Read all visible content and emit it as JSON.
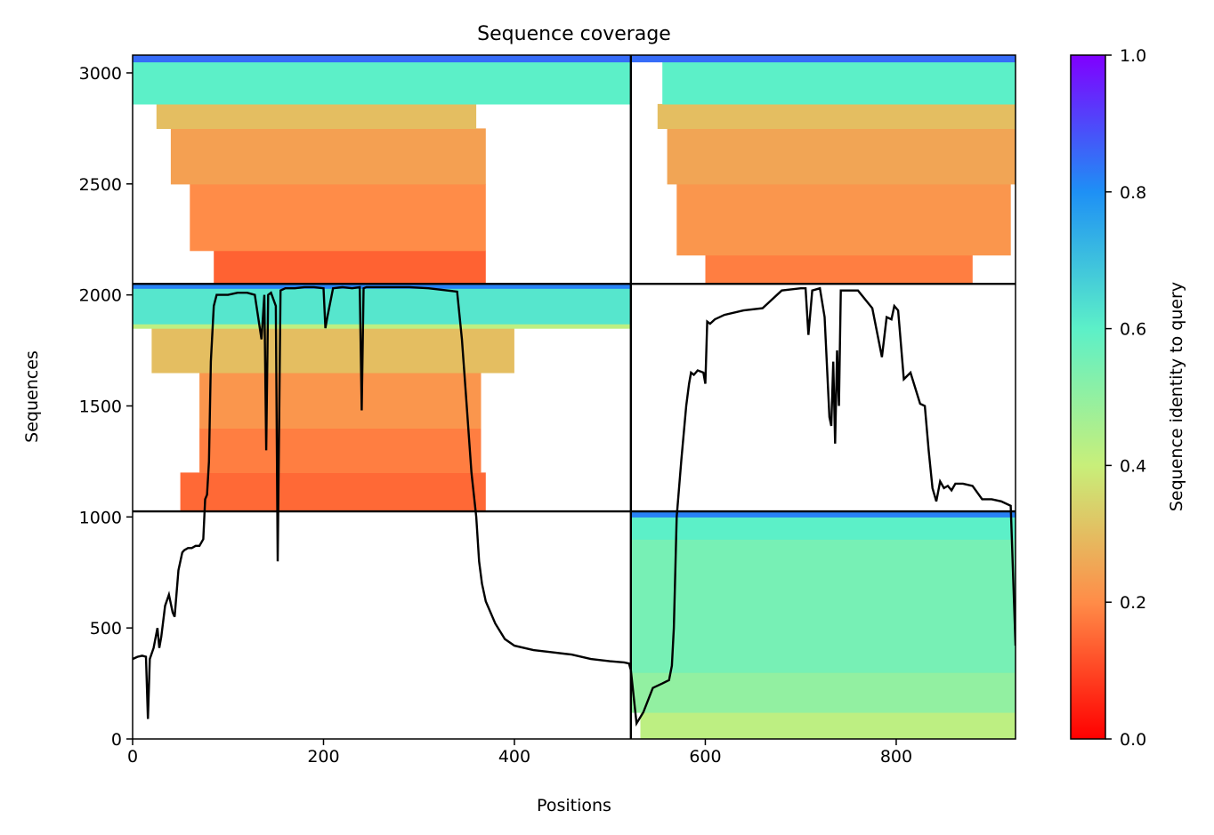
{
  "chart_data": {
    "type": "heatmap",
    "title": "Sequence coverage",
    "xlabel": "Positions",
    "ylabel": "Sequences",
    "xlim": [
      0,
      925
    ],
    "ylim": [
      0,
      3080
    ],
    "x_ticks": [
      0,
      200,
      400,
      600,
      800
    ],
    "y_ticks": [
      0,
      500,
      1000,
      1500,
      2000,
      2500,
      3000
    ],
    "grid": false,
    "colorbar": {
      "label": "Sequence identity to query",
      "colormap": "rainbow",
      "range": [
        0,
        1
      ],
      "ticks": [
        "0.0",
        "0.2",
        "0.4",
        "0.6",
        "0.8",
        "1.0"
      ],
      "colors": [
        "#ff0000",
        "#ff8c48",
        "#c8ef7a",
        "#5cf0c8",
        "#1e90f5",
        "#8000ff"
      ]
    },
    "boundaries": {
      "x": [
        522
      ],
      "y": [
        1025,
        2050
      ]
    },
    "blocks": [
      {
        "name": "block-lower-left",
        "x": [
          0,
          522
        ],
        "y": [
          0,
          1025
        ],
        "filled": false
      },
      {
        "name": "block-lower-right",
        "x": [
          522,
          925
        ],
        "y": [
          0,
          1025
        ],
        "filled": true,
        "bands": [
          {
            "y": [
              0,
              120
            ],
            "x": [
              532,
              925
            ],
            "identity": 0.42
          },
          {
            "y": [
              120,
              300
            ],
            "x": [
              522,
              925
            ],
            "identity": 0.5
          },
          {
            "y": [
              300,
              900
            ],
            "x": [
              522,
              925
            ],
            "identity": 0.55
          },
          {
            "y": [
              900,
              1000
            ],
            "x": [
              522,
              925
            ],
            "identity": 0.6
          },
          {
            "y": [
              1000,
              1025
            ],
            "x": [
              522,
              925
            ],
            "identity": 0.82
          }
        ]
      },
      {
        "name": "block-middle-left",
        "x": [
          0,
          522
        ],
        "y": [
          1025,
          2050
        ],
        "filled": true,
        "bands": [
          {
            "y": [
              1025,
              1200
            ],
            "x": [
              50,
              370
            ],
            "identity": 0.15
          },
          {
            "y": [
              1200,
              1400
            ],
            "x": [
              70,
              365
            ],
            "identity": 0.18
          },
          {
            "y": [
              1400,
              1650
            ],
            "x": [
              70,
              365
            ],
            "identity": 0.22
          },
          {
            "y": [
              1650,
              1850
            ],
            "x": [
              20,
              400
            ],
            "identity": 0.3
          },
          {
            "y": [
              1850,
              1870
            ],
            "x": [
              0,
              522
            ],
            "identity": 0.42
          },
          {
            "y": [
              1870,
              2030
            ],
            "x": [
              0,
              522
            ],
            "identity": 0.62
          },
          {
            "y": [
              2030,
              2050
            ],
            "x": [
              0,
              522
            ],
            "identity": 0.82
          }
        ]
      },
      {
        "name": "block-middle-right",
        "x": [
          522,
          925
        ],
        "y": [
          1025,
          2050
        ],
        "filled": false
      },
      {
        "name": "block-upper-left",
        "x": [
          0,
          522
        ],
        "y": [
          2050,
          3080
        ],
        "filled": true,
        "bands": [
          {
            "y": [
              2050,
              2200
            ],
            "x": [
              85,
              370
            ],
            "identity": 0.14
          },
          {
            "y": [
              2200,
              2500
            ],
            "x": [
              60,
              370
            ],
            "identity": 0.2
          },
          {
            "y": [
              2500,
              2750
            ],
            "x": [
              40,
              370
            ],
            "identity": 0.24
          },
          {
            "y": [
              2750,
              2860
            ],
            "x": [
              25,
              360
            ],
            "identity": 0.3
          },
          {
            "y": [
              2860,
              3050
            ],
            "x": [
              0,
              522
            ],
            "identity": 0.6
          },
          {
            "y": [
              3050,
              3080
            ],
            "x": [
              0,
              522
            ],
            "identity": 0.85
          }
        ]
      },
      {
        "name": "block-upper-right",
        "x": [
          522,
          925
        ],
        "y": [
          2050,
          3080
        ],
        "filled": true,
        "bands": [
          {
            "y": [
              2050,
              2180
            ],
            "x": [
              600,
              880
            ],
            "identity": 0.18
          },
          {
            "y": [
              2180,
              2500
            ],
            "x": [
              570,
              920
            ],
            "identity": 0.22
          },
          {
            "y": [
              2500,
              2750
            ],
            "x": [
              560,
              925
            ],
            "identity": 0.25
          },
          {
            "y": [
              2750,
              2860
            ],
            "x": [
              550,
              925
            ],
            "identity": 0.3
          },
          {
            "y": [
              2860,
              3050
            ],
            "x": [
              555,
              925
            ],
            "identity": 0.6
          },
          {
            "y": [
              3050,
              3080
            ],
            "x": [
              522,
              925
            ],
            "identity": 0.85
          }
        ]
      }
    ],
    "coverage_line": {
      "x": [
        0,
        5,
        10,
        14,
        16,
        18,
        22,
        26,
        28,
        30,
        34,
        38,
        42,
        44,
        48,
        52,
        54,
        58,
        62,
        66,
        70,
        74,
        76,
        78,
        80,
        82,
        85,
        88,
        92,
        100,
        110,
        120,
        128,
        135,
        138,
        140,
        142,
        145,
        150,
        152,
        155,
        160,
        170,
        180,
        190,
        200,
        202,
        204,
        210,
        220,
        230,
        238,
        240,
        242,
        245,
        255,
        270,
        290,
        310,
        330,
        340,
        345,
        350,
        355,
        360,
        363,
        366,
        370,
        380,
        390,
        400,
        420,
        440,
        460,
        480,
        500,
        515,
        520,
        522,
        528,
        535,
        545,
        555,
        562,
        565,
        567,
        570,
        575,
        580,
        583,
        585,
        588,
        592,
        598,
        600,
        602,
        605,
        610,
        620,
        640,
        660,
        680,
        700,
        705,
        708,
        712,
        720,
        725,
        730,
        732,
        734,
        736,
        738,
        740,
        742,
        745,
        760,
        775,
        785,
        790,
        795,
        798,
        802,
        808,
        815,
        820,
        825,
        830,
        834,
        838,
        842,
        846,
        850,
        854,
        858,
        862,
        870,
        880,
        890,
        900,
        910,
        920,
        925
      ],
      "y": [
        360,
        370,
        375,
        370,
        90,
        360,
        410,
        500,
        410,
        460,
        600,
        650,
        570,
        550,
        760,
        840,
        850,
        860,
        860,
        870,
        870,
        900,
        1080,
        1100,
        1250,
        1700,
        1950,
        2000,
        2000,
        2000,
        2010,
        2010,
        2000,
        1800,
        2000,
        1300,
        2000,
        2010,
        1950,
        800,
        2020,
        2030,
        2030,
        2035,
        2035,
        2030,
        1850,
        1900,
        2030,
        2035,
        2030,
        2035,
        1480,
        2030,
        2035,
        2035,
        2035,
        2035,
        2030,
        2020,
        2015,
        1800,
        1500,
        1200,
        1000,
        800,
        700,
        620,
        520,
        450,
        420,
        400,
        390,
        380,
        360,
        350,
        345,
        340,
        310,
        70,
        120,
        230,
        250,
        265,
        330,
        500,
        1000,
        1260,
        1500,
        1600,
        1650,
        1640,
        1660,
        1650,
        1600,
        1880,
        1870,
        1890,
        1910,
        1930,
        1940,
        2020,
        2030,
        2030,
        1820,
        2020,
        2030,
        1900,
        1450,
        1410,
        1700,
        1330,
        1750,
        1500,
        2020,
        2020,
        2020,
        1940,
        1720,
        1900,
        1890,
        1950,
        1930,
        1620,
        1650,
        1580,
        1510,
        1500,
        1300,
        1130,
        1070,
        1160,
        1130,
        1140,
        1120,
        1150,
        1150,
        1140,
        1080,
        1080,
        1070,
        1050,
        420
      ]
    }
  }
}
